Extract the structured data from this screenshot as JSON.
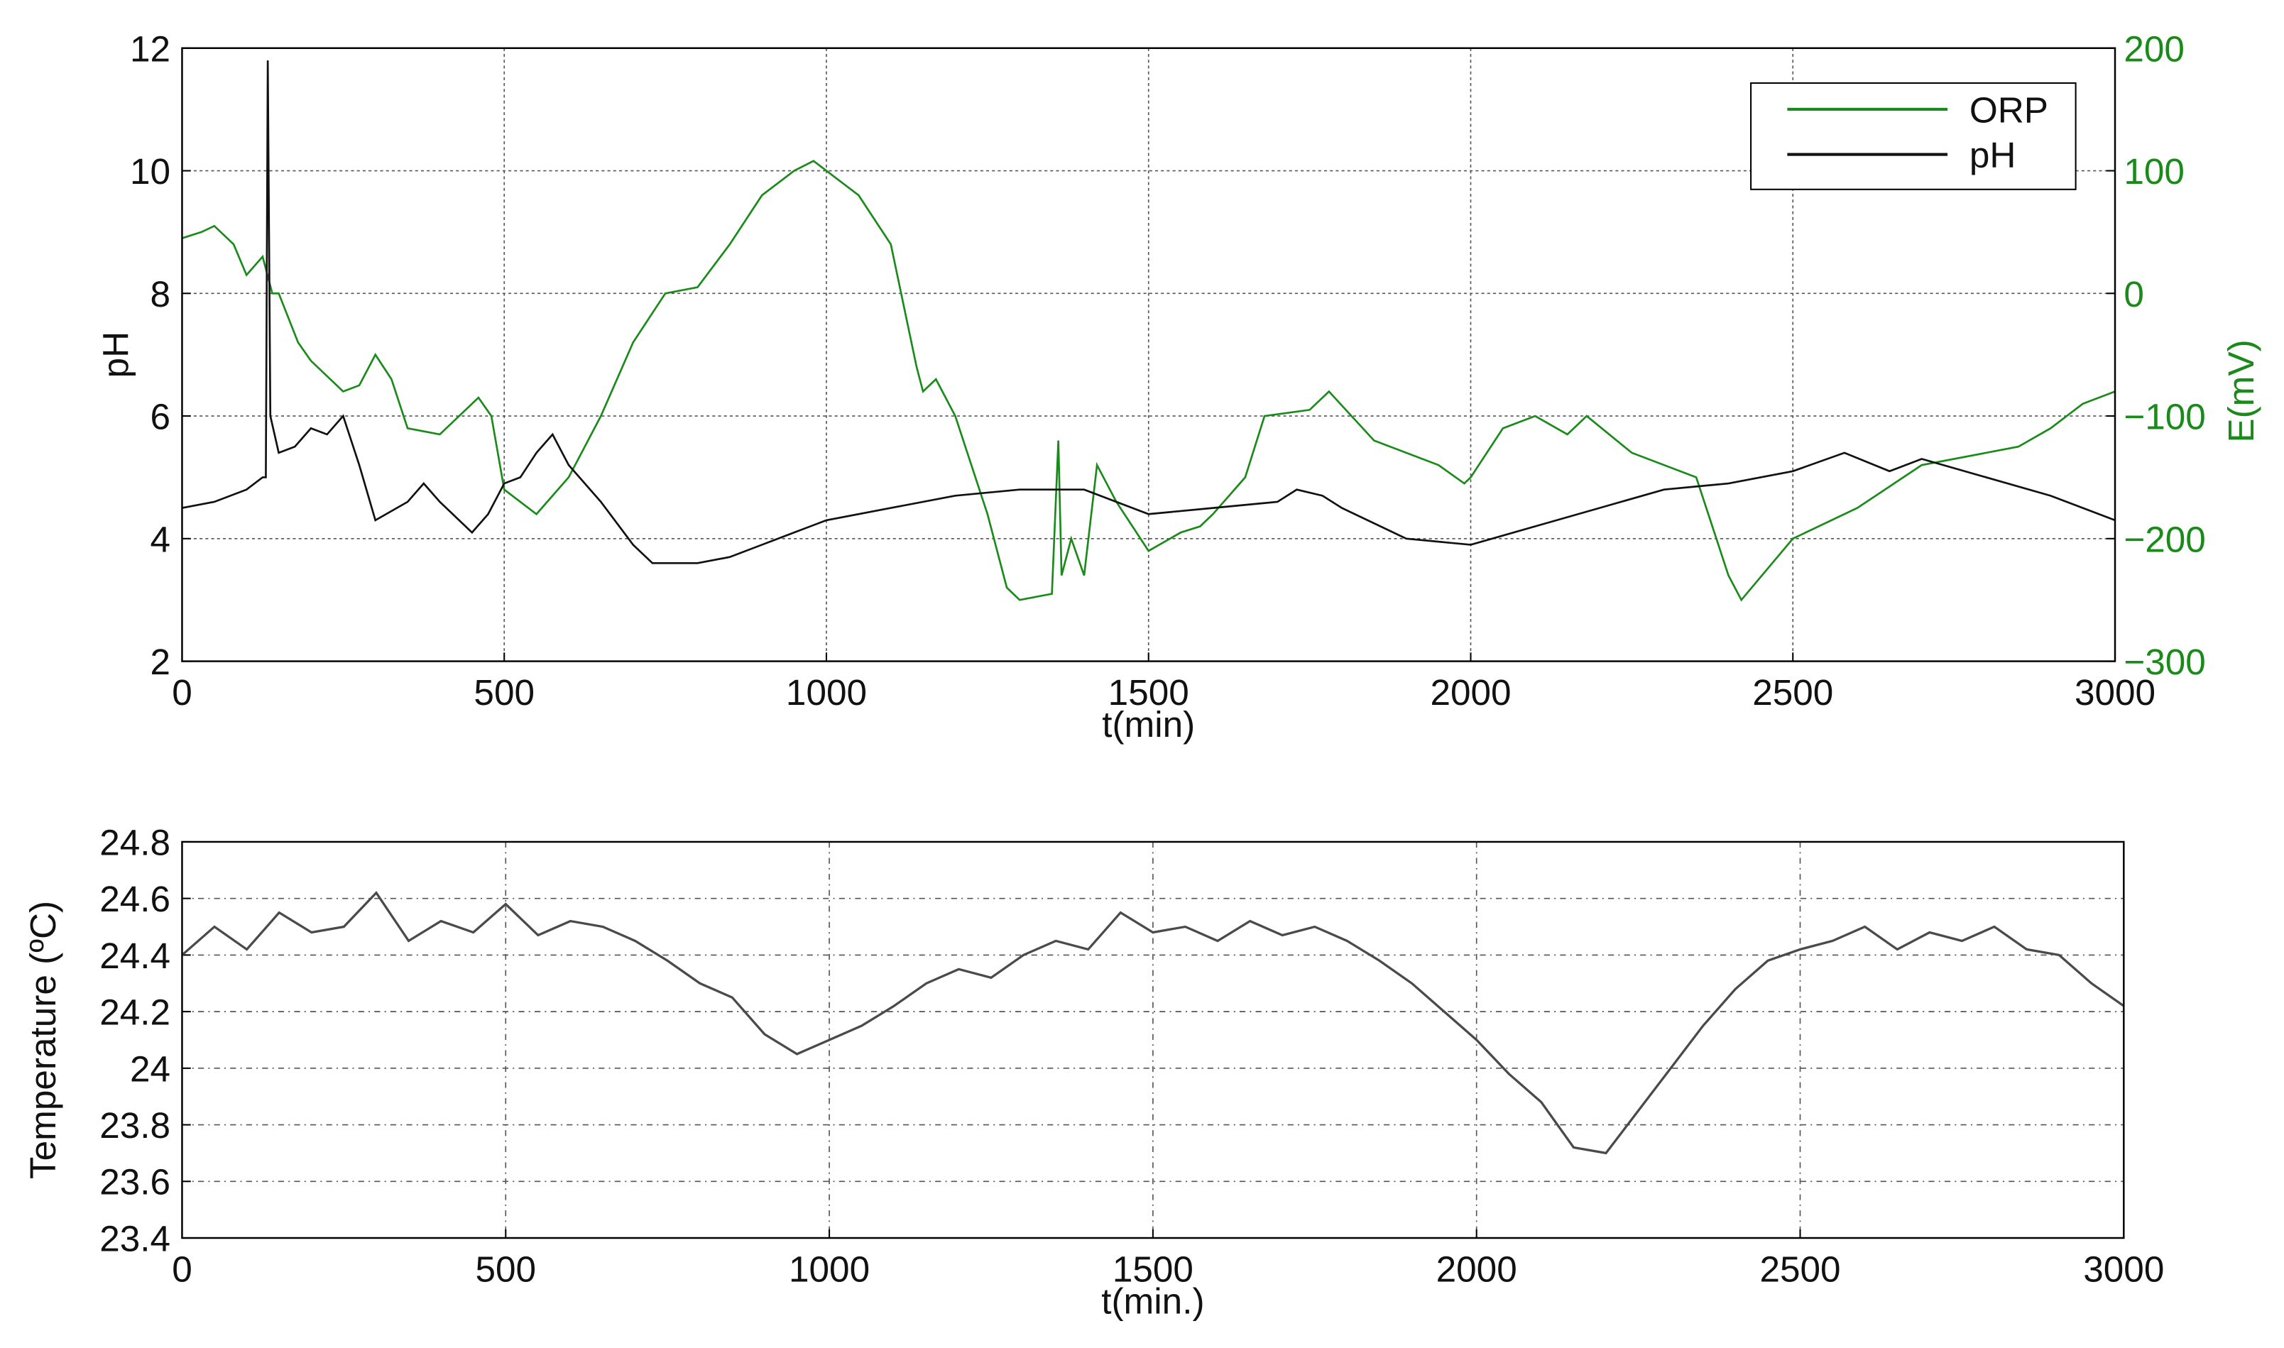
{
  "chart_data": [
    {
      "type": "line",
      "xlabel": "t(min)",
      "ylabel": "pH",
      "y2label": "E(mV)",
      "xlim": [
        0,
        3000
      ],
      "xticks": [
        0,
        500,
        1000,
        1500,
        2000,
        2500,
        3000
      ],
      "ylim": [
        2,
        12
      ],
      "yticks": [
        2,
        4,
        6,
        8,
        10,
        12
      ],
      "y2lim": [
        -300,
        200
      ],
      "y2ticks": [
        {
          "value": -300,
          "label": "−300"
        },
        {
          "value": -200,
          "label": "−200"
        },
        {
          "value": -100,
          "label": "−100"
        },
        0,
        100,
        200
      ],
      "y2color": "#1a8a1a",
      "grid": true,
      "legend": "upper right",
      "series": [
        {
          "name": "ORP",
          "color": "#1a8a1a",
          "axis": "y2",
          "x": [
            0,
            30,
            50,
            80,
            100,
            125,
            140,
            150,
            180,
            200,
            250,
            275,
            300,
            325,
            350,
            400,
            430,
            460,
            480,
            500,
            550,
            600,
            650,
            700,
            750,
            800,
            850,
            900,
            950,
            980,
            1050,
            1100,
            1120,
            1140,
            1150,
            1170,
            1200,
            1250,
            1280,
            1300,
            1350,
            1360,
            1365,
            1380,
            1400,
            1420,
            1450,
            1500,
            1550,
            1580,
            1600,
            1650,
            1680,
            1750,
            1780,
            1850,
            1950,
            1990,
            2000,
            2050,
            2100,
            2150,
            2180,
            2250,
            2350,
            2400,
            2420,
            2500,
            2600,
            2700,
            2800,
            2850,
            2900,
            2950,
            3000
          ],
          "values": [
            45,
            50,
            55,
            40,
            15,
            30,
            0,
            0,
            -40,
            -55,
            -80,
            -75,
            -50,
            -70,
            -110,
            -115,
            -100,
            -85,
            -100,
            -160,
            -180,
            -150,
            -100,
            -40,
            0,
            5,
            40,
            80,
            100,
            108,
            80,
            40,
            -10,
            -60,
            -80,
            -70,
            -100,
            -180,
            -240,
            -250,
            -245,
            -120,
            -230,
            -200,
            -230,
            -140,
            -170,
            -210,
            -195,
            -190,
            -180,
            -150,
            -100,
            -95,
            -80,
            -120,
            -140,
            -155,
            -150,
            -110,
            -100,
            -115,
            -100,
            -130,
            -150,
            -230,
            -250,
            -200,
            -175,
            -140,
            -130,
            -125,
            -110,
            -90,
            -80
          ]
        },
        {
          "name": "pH",
          "color": "#111111",
          "axis": "y",
          "x": [
            0,
            50,
            100,
            125,
            130,
            133,
            137,
            150,
            175,
            200,
            225,
            250,
            275,
            300,
            350,
            375,
            400,
            450,
            475,
            500,
            525,
            550,
            575,
            600,
            650,
            700,
            730,
            800,
            850,
            900,
            950,
            1000,
            1100,
            1200,
            1300,
            1400,
            1500,
            1600,
            1700,
            1730,
            1770,
            1800,
            1900,
            2000,
            2100,
            2200,
            2300,
            2400,
            2500,
            2580,
            2650,
            2700,
            2800,
            2900,
            3000
          ],
          "values": [
            4.5,
            4.6,
            4.8,
            5.0,
            5.0,
            11.8,
            6.0,
            5.4,
            5.5,
            5.8,
            5.7,
            6.0,
            5.2,
            4.3,
            4.6,
            4.9,
            4.6,
            4.1,
            4.4,
            4.9,
            5.0,
            5.4,
            5.7,
            5.2,
            4.6,
            3.9,
            3.6,
            3.6,
            3.7,
            3.9,
            4.1,
            4.3,
            4.5,
            4.7,
            4.8,
            4.8,
            4.4,
            4.5,
            4.6,
            4.8,
            4.7,
            4.5,
            4.0,
            3.9,
            4.2,
            4.5,
            4.8,
            4.9,
            5.1,
            5.4,
            5.1,
            5.3,
            5.0,
            4.7,
            4.3
          ]
        }
      ]
    },
    {
      "type": "line",
      "xlabel": "t(min.)",
      "ylabel": "Temperature (ºC)",
      "xlim": [
        0,
        3000
      ],
      "xticks": [
        0,
        500,
        1000,
        1500,
        2000,
        2500,
        3000
      ],
      "ylim": [
        23.4,
        24.8
      ],
      "yticks": [
        23.4,
        23.6,
        23.8,
        24,
        24.2,
        24.4,
        24.6,
        24.8
      ],
      "grid": true,
      "series": [
        {
          "color": "#4a4a4a",
          "axis": "y",
          "x": [
            0,
            50,
            100,
            150,
            200,
            250,
            300,
            350,
            400,
            450,
            500,
            550,
            600,
            650,
            700,
            750,
            800,
            850,
            900,
            950,
            1000,
            1050,
            1100,
            1150,
            1200,
            1250,
            1300,
            1350,
            1400,
            1450,
            1500,
            1550,
            1600,
            1650,
            1700,
            1750,
            1800,
            1850,
            1900,
            1950,
            2000,
            2050,
            2100,
            2150,
            2200,
            2250,
            2300,
            2350,
            2400,
            2450,
            2500,
            2550,
            2600,
            2650,
            2700,
            2750,
            2800,
            2850,
            2900,
            2950,
            3000
          ],
          "values": [
            24.4,
            24.5,
            24.42,
            24.55,
            24.48,
            24.5,
            24.62,
            24.45,
            24.52,
            24.48,
            24.58,
            24.47,
            24.52,
            24.5,
            24.45,
            24.38,
            24.3,
            24.25,
            24.12,
            24.05,
            24.1,
            24.15,
            24.22,
            24.3,
            24.35,
            24.32,
            24.4,
            24.45,
            24.42,
            24.55,
            24.48,
            24.5,
            24.45,
            24.52,
            24.47,
            24.5,
            24.45,
            24.38,
            24.3,
            24.2,
            24.1,
            23.98,
            23.88,
            23.72,
            23.7,
            23.85,
            24.0,
            24.15,
            24.28,
            24.38,
            24.42,
            24.45,
            24.5,
            24.42,
            24.48,
            24.45,
            24.5,
            24.42,
            24.4,
            24.3,
            24.22
          ]
        }
      ]
    }
  ]
}
